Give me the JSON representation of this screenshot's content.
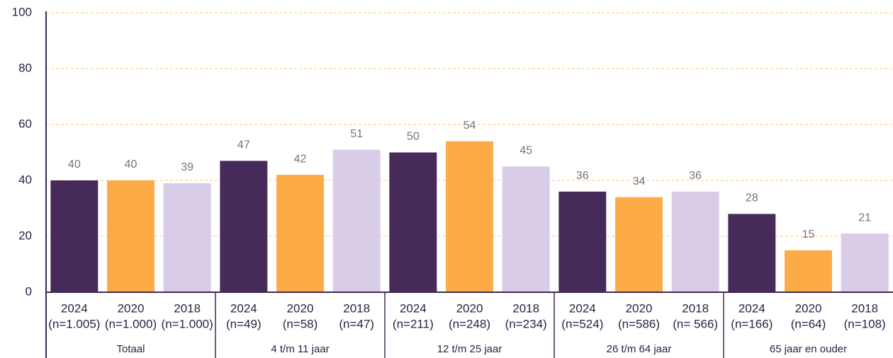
{
  "chart_data": {
    "type": "bar",
    "categories": [
      "Totaal",
      "4 t/m 11 jaar",
      "12 t/m 25 jaar",
      "26 t/m 64 jaar",
      "65 jaar en ouder"
    ],
    "series": [
      {
        "name": "2024",
        "color": "#452a5a",
        "values": [
          40,
          47,
          50,
          36,
          28
        ],
        "n_labels": [
          "(n=1.005)",
          "(n=49)",
          "(n=211)",
          "(n=524)",
          "(n=166)"
        ]
      },
      {
        "name": "2020",
        "color": "#fdab47",
        "values": [
          40,
          42,
          54,
          34,
          15
        ],
        "n_labels": [
          "(n=1.000)",
          "(n=58)",
          "(n=248)",
          "(n=586)",
          "(n=64)"
        ]
      },
      {
        "name": "2018",
        "color": "#d9cce8",
        "values": [
          39,
          51,
          45,
          36,
          21
        ],
        "n_labels": [
          "(n=1.000)",
          "(n=47)",
          "(n=234)",
          "(n= 566)",
          "(n=108)"
        ]
      }
    ],
    "ylim": [
      0,
      100
    ],
    "yticks": [
      0,
      20,
      40,
      60,
      80,
      100
    ],
    "grid": true
  }
}
